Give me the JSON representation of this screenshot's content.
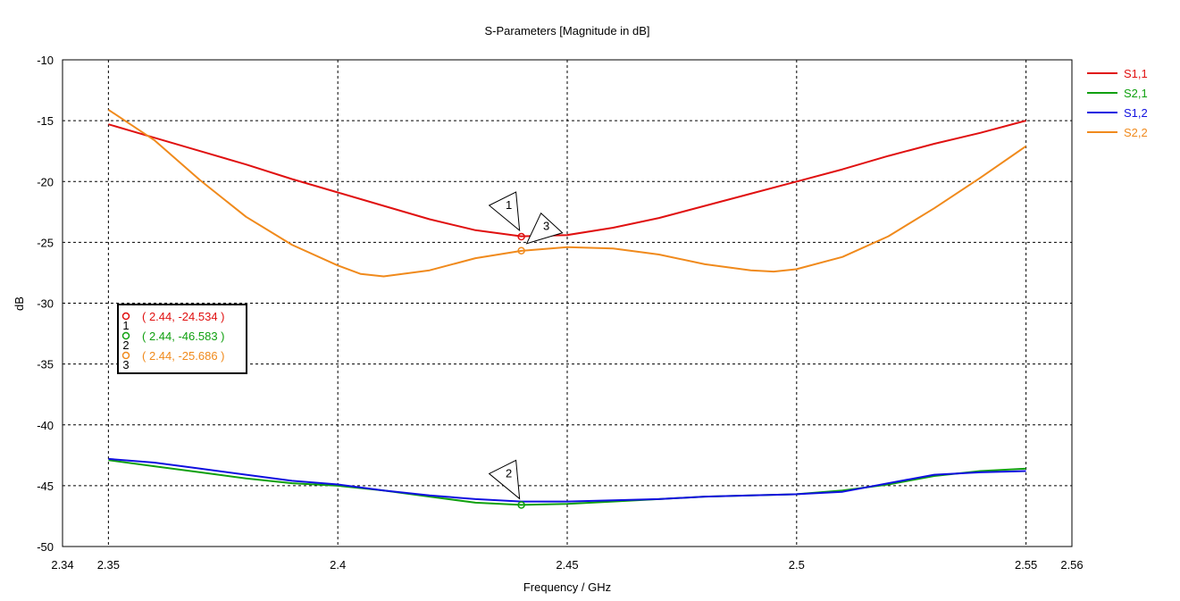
{
  "chart_data": {
    "type": "line",
    "title": "S-Parameters [Magnitude in dB]",
    "xlabel": "Frequency / GHz",
    "ylabel": "dB",
    "xlim": [
      2.34,
      2.56
    ],
    "ylim": [
      -50,
      -10
    ],
    "xticks": [
      "2.34",
      "2.35",
      "2.4",
      "2.45",
      "2.5",
      "2.55",
      "2.56"
    ],
    "xtick_values": [
      2.34,
      2.35,
      2.4,
      2.45,
      2.5,
      2.55,
      2.56
    ],
    "yticks": [
      "-10",
      "-15",
      "-20",
      "-25",
      "-30",
      "-35",
      "-40",
      "-45",
      "-50"
    ],
    "ytick_values": [
      -10,
      -15,
      -20,
      -25,
      -30,
      -35,
      -40,
      -45,
      -50
    ],
    "grid": "dashed",
    "legend_position": "right",
    "series": [
      {
        "name": "S1,1",
        "color": "#e01010",
        "x": [
          2.35,
          2.36,
          2.37,
          2.38,
          2.39,
          2.4,
          2.41,
          2.42,
          2.43,
          2.44,
          2.45,
          2.46,
          2.47,
          2.48,
          2.49,
          2.5,
          2.51,
          2.52,
          2.53,
          2.54,
          2.55
        ],
        "y": [
          -15.3,
          -16.4,
          -17.5,
          -18.6,
          -19.8,
          -20.9,
          -22.0,
          -23.1,
          -24.0,
          -24.5,
          -24.4,
          -23.8,
          -23.0,
          -22.0,
          -21.0,
          -20.0,
          -19.0,
          -17.9,
          -16.9,
          -16.0,
          -15.0
        ]
      },
      {
        "name": "S2,1",
        "color": "#10a010",
        "x": [
          2.35,
          2.36,
          2.37,
          2.38,
          2.39,
          2.4,
          2.41,
          2.42,
          2.43,
          2.44,
          2.45,
          2.46,
          2.47,
          2.48,
          2.49,
          2.5,
          2.51,
          2.52,
          2.53,
          2.54,
          2.55
        ],
        "y": [
          -42.9,
          -43.4,
          -43.9,
          -44.4,
          -44.8,
          -45.0,
          -45.4,
          -45.9,
          -46.4,
          -46.58,
          -46.5,
          -46.3,
          -46.1,
          -45.9,
          -45.8,
          -45.7,
          -45.4,
          -44.9,
          -44.2,
          -43.8,
          -43.6
        ]
      },
      {
        "name": "S1,2",
        "color": "#1010e0",
        "x": [
          2.35,
          2.36,
          2.37,
          2.38,
          2.39,
          2.4,
          2.41,
          2.42,
          2.43,
          2.44,
          2.45,
          2.46,
          2.47,
          2.48,
          2.49,
          2.5,
          2.51,
          2.52,
          2.53,
          2.54,
          2.55
        ],
        "y": [
          -42.8,
          -43.1,
          -43.6,
          -44.1,
          -44.6,
          -44.9,
          -45.4,
          -45.8,
          -46.1,
          -46.3,
          -46.3,
          -46.2,
          -46.1,
          -45.9,
          -45.8,
          -45.7,
          -45.5,
          -44.8,
          -44.1,
          -43.9,
          -43.8
        ]
      },
      {
        "name": "S2,2",
        "color": "#f08a1c",
        "x": [
          2.35,
          2.36,
          2.37,
          2.38,
          2.39,
          2.4,
          2.405,
          2.41,
          2.42,
          2.43,
          2.44,
          2.45,
          2.46,
          2.47,
          2.48,
          2.49,
          2.495,
          2.5,
          2.51,
          2.52,
          2.53,
          2.54,
          2.55
        ],
        "y": [
          -14.1,
          -16.6,
          -19.9,
          -22.9,
          -25.2,
          -26.9,
          -27.6,
          -27.8,
          -27.3,
          -26.3,
          -25.7,
          -25.4,
          -25.5,
          -26.0,
          -26.8,
          -27.3,
          -27.4,
          -27.2,
          -26.2,
          -24.5,
          -22.2,
          -19.7,
          -17.1
        ]
      }
    ],
    "markers": [
      {
        "id": "1",
        "series": "S1,1",
        "x": 2.44,
        "y": -24.534,
        "label": "( 2.44, -24.534 )"
      },
      {
        "id": "2",
        "series": "S2,1",
        "x": 2.44,
        "y": -46.583,
        "label": "( 2.44, -46.583 )"
      },
      {
        "id": "3",
        "series": "S2,2",
        "x": 2.44,
        "y": -25.686,
        "label": "( 2.44, -25.686 )"
      }
    ]
  }
}
